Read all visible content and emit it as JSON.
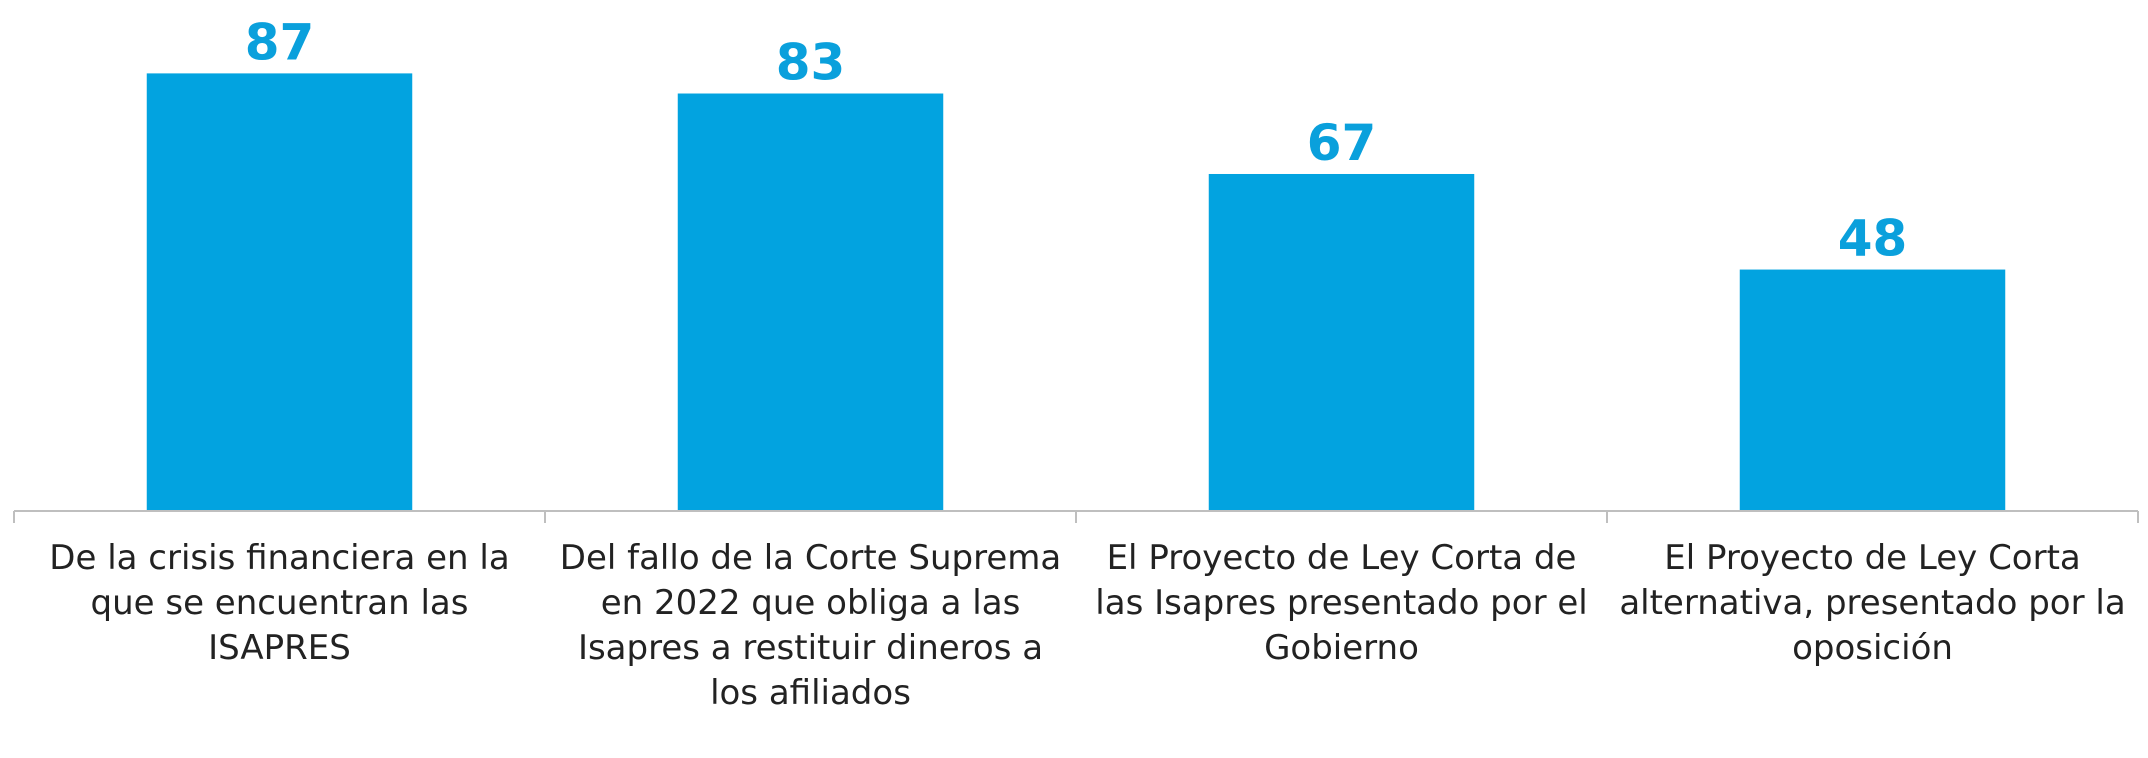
{
  "chart_data": {
    "type": "bar",
    "categories": [
      "De la crisis financiera en la que se encuentran las ISAPRES",
      "Del fallo de la Corte Suprema en 2022 que obliga a las Isapres a restituir dineros a los afiliados",
      "El Proyecto de Ley Corta de las Isapres presentado por el Gobierno",
      "El Proyecto de Ley Corta alternativa, presentado por la oposición"
    ],
    "values": [
      87,
      83,
      67,
      48
    ],
    "color": "#02a3e0",
    "ylim": [
      0,
      100
    ]
  }
}
